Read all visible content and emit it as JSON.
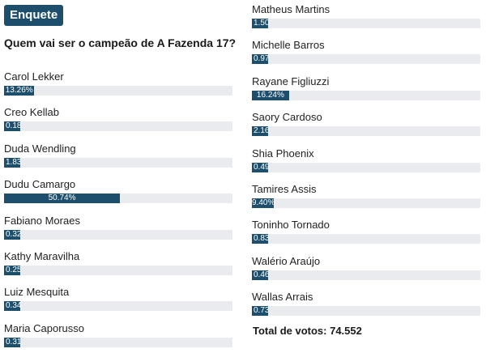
{
  "header": {
    "badge": "Enquete"
  },
  "poll": {
    "question": "Quem vai ser o campeão de A Fazenda 17?",
    "total_label": "Total de votos: 74.552",
    "accent": "#1d4f6c",
    "track_color": "#e9ebee",
    "left": [
      {
        "name": "Carol Lekker",
        "pct": "13.26%",
        "value": 13.26
      },
      {
        "name": "Creo Kellab",
        "pct": "0.18",
        "value": 0.18
      },
      {
        "name": "Duda Wendling",
        "pct": "1.83",
        "value": 1.83
      },
      {
        "name": "Dudu Camargo",
        "pct": "50.74%",
        "value": 50.74
      },
      {
        "name": "Fabiano Moraes",
        "pct": "0.32",
        "value": 0.32
      },
      {
        "name": "Kathy Maravilha",
        "pct": "0.25",
        "value": 0.25
      },
      {
        "name": "Luiz Mesquita",
        "pct": "0.34",
        "value": 0.34
      },
      {
        "name": "Maria Caporusso",
        "pct": "0.31",
        "value": 0.31
      }
    ],
    "right": [
      {
        "name": "Matheus Martins",
        "pct": "1.50",
        "value": 1.5
      },
      {
        "name": "Michelle Barros",
        "pct": "0.97",
        "value": 0.97
      },
      {
        "name": "Rayane Figliuzzi",
        "pct": "16.24%",
        "value": 16.24
      },
      {
        "name": "Saory Cardoso",
        "pct": "2.16",
        "value": 2.16
      },
      {
        "name": "Shia Phoenix",
        "pct": "0.49",
        "value": 0.49
      },
      {
        "name": "Tamires Assis",
        "pct": "9.40%",
        "value": 9.4
      },
      {
        "name": "Toninho Tornado",
        "pct": "0.83",
        "value": 0.83
      },
      {
        "name": "Walério Araújo",
        "pct": "0.46",
        "value": 0.46
      },
      {
        "name": "Wallas Arrais",
        "pct": "0.73",
        "value": 0.73
      }
    ]
  }
}
